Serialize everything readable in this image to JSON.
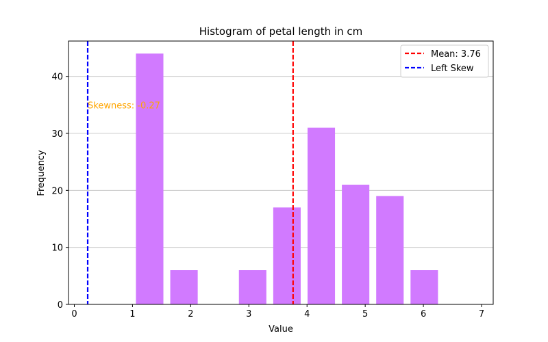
{
  "chart_data": {
    "type": "bar",
    "title": "Histogram of petal length in cm",
    "xlabel": "Value",
    "ylabel": "Frequency",
    "xlim": [
      -0.1,
      7.2
    ],
    "ylim": [
      0,
      46.2
    ],
    "xticks": [
      0,
      1,
      2,
      3,
      4,
      5,
      6,
      7
    ],
    "yticks": [
      0,
      10,
      20,
      30,
      40
    ],
    "grid": "y",
    "bar_color": "#d17aff",
    "bins": [
      {
        "start": 1.0,
        "end": 1.59,
        "value": 44
      },
      {
        "start": 1.59,
        "end": 2.18,
        "value": 6
      },
      {
        "start": 2.18,
        "end": 2.77,
        "value": 0
      },
      {
        "start": 2.77,
        "end": 3.36,
        "value": 6
      },
      {
        "start": 3.36,
        "end": 3.95,
        "value": 17
      },
      {
        "start": 3.95,
        "end": 4.54,
        "value": 31
      },
      {
        "start": 4.54,
        "end": 5.13,
        "value": 21
      },
      {
        "start": 5.13,
        "end": 5.72,
        "value": 19
      },
      {
        "start": 5.72,
        "end": 6.31,
        "value": 6
      }
    ],
    "vlines": [
      {
        "name": "Mean: 3.76",
        "x": 3.76,
        "color": "#ff0000"
      },
      {
        "name": "Left Skew",
        "x": 0.23,
        "color": "#0000ff"
      }
    ],
    "annotation": {
      "text": "Skewness: -0.27",
      "x": 0.23,
      "y": 35,
      "color": "#ffa500"
    },
    "legend_position": "top-right"
  }
}
